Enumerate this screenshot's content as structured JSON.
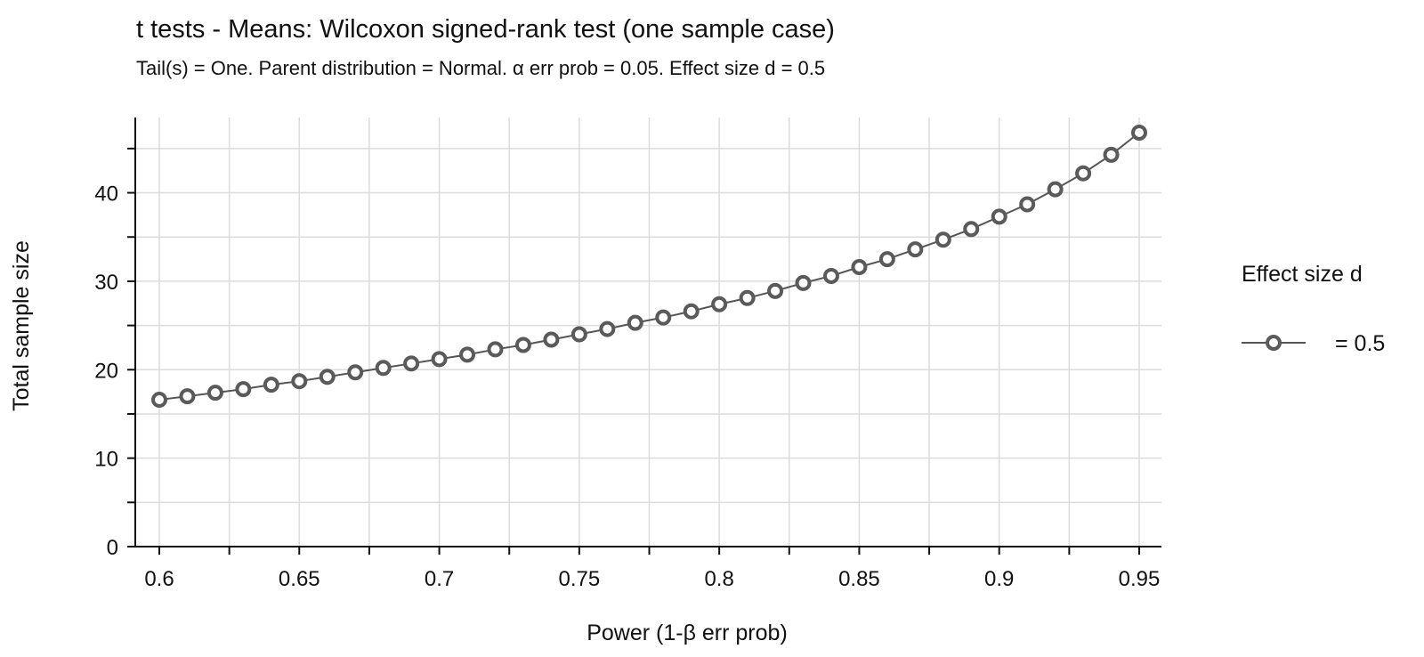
{
  "chart_data": {
    "type": "line",
    "title": "t tests - Means: Wilcoxon signed-rank test (one sample case)",
    "subtitle": "Tail(s) = One. Parent distribution = Normal. α err prob = 0.05. Effect size d = 0.5",
    "xlabel": "Power (1-β err prob)",
    "ylabel": "Total sample size",
    "xlim": [
      0.6,
      0.95
    ],
    "ylim": [
      0,
      47
    ],
    "x_ticks": [
      0.6,
      0.65,
      0.7,
      0.75,
      0.8,
      0.85,
      0.9,
      0.95
    ],
    "x_tick_labels": [
      "0.6",
      "0.65",
      "0.7",
      "0.75",
      "0.8",
      "0.85",
      "0.9",
      "0.95"
    ],
    "x_minor_ticks": [
      0.625,
      0.675,
      0.725,
      0.775,
      0.825,
      0.875,
      0.925
    ],
    "y_ticks": [
      0,
      10,
      20,
      30,
      40
    ],
    "y_tick_labels": [
      "0",
      "10",
      "20",
      "30",
      "40"
    ],
    "y_minor_ticks": [
      5,
      15,
      25,
      35,
      45
    ],
    "grid": true,
    "legend": {
      "title": "Effect size d",
      "position": "right"
    },
    "series": [
      {
        "name": "= 0.5",
        "color": "#555555",
        "x": [
          0.6,
          0.61,
          0.62,
          0.63,
          0.64,
          0.65,
          0.66,
          0.67,
          0.68,
          0.69,
          0.7,
          0.71,
          0.72,
          0.73,
          0.74,
          0.75,
          0.76,
          0.77,
          0.78,
          0.79,
          0.8,
          0.81,
          0.82,
          0.83,
          0.84,
          0.85,
          0.86,
          0.87,
          0.88,
          0.89,
          0.9,
          0.91,
          0.92,
          0.93,
          0.94,
          0.95
        ],
        "values": [
          16.6,
          17.0,
          17.4,
          17.8,
          18.3,
          18.7,
          19.2,
          19.7,
          20.2,
          20.7,
          21.2,
          21.7,
          22.3,
          22.8,
          23.4,
          24.0,
          24.6,
          25.3,
          25.9,
          26.6,
          27.4,
          28.1,
          28.9,
          29.8,
          30.6,
          31.6,
          32.5,
          33.6,
          34.7,
          35.9,
          37.3,
          38.7,
          40.4,
          42.2,
          44.3,
          46.8
        ]
      }
    ]
  }
}
